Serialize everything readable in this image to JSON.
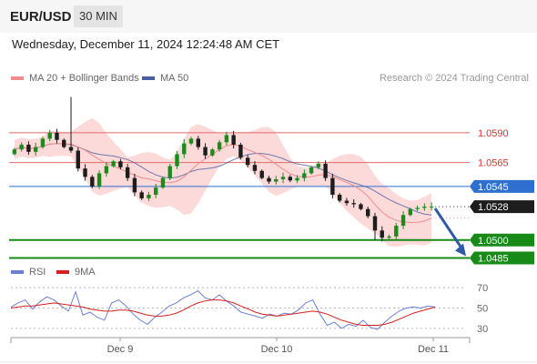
{
  "header": {
    "symbol": "EUR/USD",
    "interval": "30 MIN",
    "datetime": "Wednesday, December 11, 2024 12:24:48 AM CET"
  },
  "legend": {
    "ma20_label": "MA 20 + Bollinger Bands",
    "ma50_label": "MA 50",
    "credit": "Research © 2024 Trading Central",
    "rsi_label": "RSI",
    "rsi_ma_label": "9MA"
  },
  "colors": {
    "bollinger_fill": "#fbd3d3",
    "ma20": "#f28b8b",
    "ma50": "#4a5fa0",
    "resistance": "#e26a6a",
    "pivot": "#2f6fd0",
    "support": "#188a18",
    "candle_up": "#1e8a1e",
    "candle_down": "#1d1d1d",
    "last_price_bg": "#1d1d1d",
    "forecast_arrow": "#2f5aa8",
    "rsi": "#6a7fd4",
    "rsi_ma": "#d62020"
  },
  "chart_data": [
    {
      "type": "candlestick",
      "x_labels": [
        "Dec 9",
        "Dec 10",
        "Dec 11"
      ],
      "ylim": [
        1.048,
        1.0625
      ],
      "close_path": [
        1.0572,
        1.0576,
        1.058,
        1.0574,
        1.0578,
        1.0585,
        1.059,
        1.0584,
        1.0578,
        1.0575,
        1.056,
        1.0553,
        1.0545,
        1.0556,
        1.0562,
        1.0566,
        1.0561,
        1.0552,
        1.054,
        1.0535,
        1.0538,
        1.0544,
        1.0552,
        1.0562,
        1.0572,
        1.0581,
        1.0585,
        1.0578,
        1.0571,
        1.0576,
        1.0582,
        1.0588,
        1.058,
        1.0569,
        1.0563,
        1.0558,
        1.0552,
        1.0549,
        1.0551,
        1.0553,
        1.055,
        1.0552,
        1.0556,
        1.0561,
        1.0564,
        1.0552,
        1.0538,
        1.0533,
        1.0531,
        1.053,
        1.0526,
        1.052,
        1.0508,
        1.0502,
        1.0503,
        1.0512,
        1.0521,
        1.0526,
        1.0527,
        1.0528,
        1.0528
      ],
      "high": 1.062,
      "low": 1.05,
      "levels": {
        "resistance_2": "1.0590",
        "resistance_1": "1.0565",
        "pivot": "1.0545",
        "last_price": "1.0528",
        "support_1": "1.0500",
        "support_2": "1.0485"
      },
      "indicators": [
        "MA 20 + Bollinger Bands",
        "MA 50"
      ]
    },
    {
      "type": "line",
      "series": [
        {
          "name": "RSI",
          "values": [
            51,
            55,
            58,
            49,
            56,
            61,
            58,
            52,
            47,
            66,
            43,
            46,
            41,
            38,
            55,
            58,
            52,
            44,
            38,
            34,
            41,
            46,
            52,
            55,
            60,
            63,
            67,
            60,
            58,
            63,
            57,
            52,
            46,
            44,
            42,
            40,
            44,
            42,
            45,
            44,
            48,
            55,
            58,
            44,
            33,
            36,
            30,
            34,
            32,
            38,
            31,
            29,
            36,
            42,
            47,
            50,
            51,
            50,
            52,
            51
          ]
        },
        {
          "name": "9MA",
          "values": [
            50,
            51,
            52,
            52,
            53,
            54,
            55,
            54,
            53,
            52,
            51,
            49,
            48,
            47,
            47,
            48,
            48,
            47,
            45,
            43,
            42,
            42,
            43,
            45,
            48,
            52,
            55,
            57,
            58,
            58,
            57,
            55,
            52,
            49,
            46,
            44,
            43,
            42,
            43,
            44,
            45,
            46,
            47,
            46,
            44,
            41,
            38,
            36,
            34,
            33,
            33,
            33,
            34,
            36,
            39,
            42,
            45,
            47,
            49,
            51
          ]
        }
      ],
      "ylim": [
        20,
        80
      ],
      "y_ticks": [
        "70",
        "50",
        "30"
      ],
      "dashed_levels": [
        70,
        50,
        30
      ]
    }
  ]
}
